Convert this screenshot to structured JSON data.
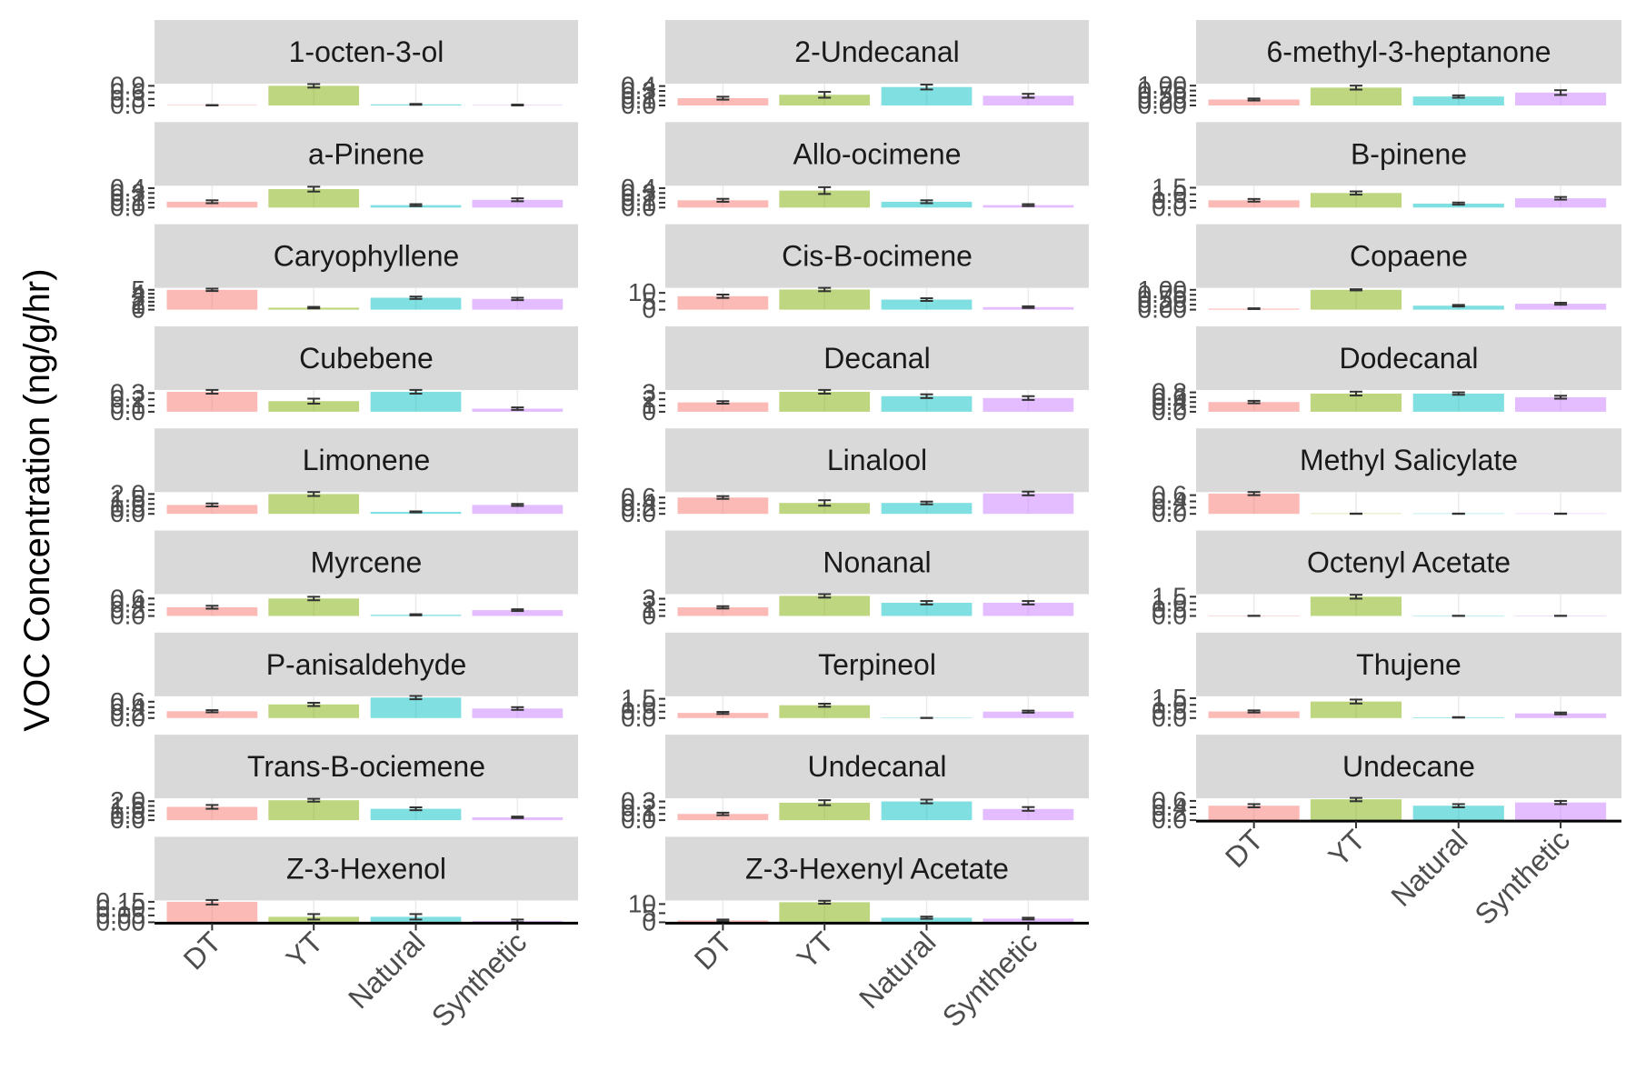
{
  "ylabel": "VOC Concentration (ng/g/hr)",
  "categories": [
    "DT",
    "YT",
    "Natural",
    "Synthetic"
  ],
  "colors": {
    "DT": "#F8766D",
    "YT": "#7CAE00",
    "Natural": "#00BFC4",
    "Synthetic": "#C77CFF",
    "strip_bg": "#D9D9D9",
    "error_bar": "#333333",
    "axis_line": "#000000"
  },
  "chart_data": {
    "type": "bar",
    "layout": "facet_wrap ncol=3 free_y",
    "x": "treatment",
    "ylabel": "VOC Concentration (ng/g/hr)",
    "categories": [
      "DT",
      "YT",
      "Natural",
      "Synthetic"
    ],
    "bar_alpha": 0.5,
    "facets": [
      {
        "title": "1-octen-3-ol",
        "yticks": [
          "0.0",
          "0.3",
          "0.6",
          "0.9"
        ],
        "ymax": 1.0,
        "values": [
          0.0,
          0.9,
          0.05,
          0.02
        ],
        "errors": [
          0.02,
          0.08,
          0.02,
          0.02
        ]
      },
      {
        "title": "2-Undecanal",
        "yticks": [
          "0.0",
          "0.1",
          "0.2",
          "0.3",
          "0.4"
        ],
        "ymax": 0.45,
        "values": [
          0.15,
          0.22,
          0.38,
          0.2
        ],
        "errors": [
          0.03,
          0.06,
          0.05,
          0.04
        ]
      },
      {
        "title": "6-methyl-3-heptanone",
        "yticks": [
          "0.00",
          "0.25",
          "0.50",
          "0.75",
          "1.00"
        ],
        "ymax": 1.1,
        "values": [
          0.3,
          0.9,
          0.45,
          0.65
        ],
        "errors": [
          0.05,
          0.1,
          0.06,
          0.12
        ]
      },
      {
        "title": "a-Pinene",
        "yticks": [
          "0.0",
          "0.1",
          "0.2",
          "0.3",
          "0.4"
        ],
        "ymax": 0.45,
        "values": [
          0.12,
          0.38,
          0.05,
          0.16
        ],
        "errors": [
          0.03,
          0.05,
          0.02,
          0.03
        ]
      },
      {
        "title": "Allo-ocimene",
        "yticks": [
          "0.0",
          "0.1",
          "0.2",
          "0.3",
          "0.4"
        ],
        "ymax": 0.45,
        "values": [
          0.15,
          0.35,
          0.12,
          0.05
        ],
        "errors": [
          0.03,
          0.07,
          0.03,
          0.02
        ]
      },
      {
        "title": "B-pinene",
        "yticks": [
          "0.0",
          "0.5",
          "1.0",
          "1.5"
        ],
        "ymax": 1.65,
        "values": [
          0.55,
          1.1,
          0.3,
          0.7
        ],
        "errors": [
          0.1,
          0.12,
          0.08,
          0.1
        ]
      },
      {
        "title": "Caryophyllene",
        "yticks": [
          "0",
          "1",
          "2",
          "3",
          "4",
          "5"
        ],
        "ymax": 5.5,
        "values": [
          5.0,
          0.5,
          3.0,
          2.7
        ],
        "errors": [
          0.3,
          0.2,
          0.3,
          0.3
        ]
      },
      {
        "title": "Cis-B-ocimene",
        "yticks": [
          "0",
          "5",
          "10"
        ],
        "ymax": 13,
        "values": [
          8.0,
          12.0,
          6.0,
          1.5
        ],
        "errors": [
          1.0,
          1.0,
          0.8,
          0.5
        ]
      },
      {
        "title": "Copaene",
        "yticks": [
          "0.00",
          "0.25",
          "0.50",
          "0.75",
          "1.00"
        ],
        "ymax": 1.1,
        "values": [
          0.05,
          1.0,
          0.2,
          0.3
        ],
        "errors": [
          0.02,
          0.03,
          0.04,
          0.05
        ]
      },
      {
        "title": "Cubebene",
        "yticks": [
          "0.0",
          "0.1",
          "0.2",
          "0.3"
        ],
        "ymax": 0.35,
        "values": [
          0.32,
          0.17,
          0.32,
          0.05
        ],
        "errors": [
          0.03,
          0.04,
          0.03,
          0.02
        ]
      },
      {
        "title": "Decanal",
        "yticks": [
          "0",
          "1",
          "2",
          "3"
        ],
        "ymax": 3.5,
        "values": [
          1.5,
          3.2,
          2.5,
          2.2
        ],
        "errors": [
          0.2,
          0.3,
          0.3,
          0.3
        ]
      },
      {
        "title": "Dodecanal",
        "yticks": [
          "0.0",
          "0.2",
          "0.4",
          "0.6",
          "0.8"
        ],
        "ymax": 0.9,
        "values": [
          0.4,
          0.75,
          0.75,
          0.6
        ],
        "errors": [
          0.05,
          0.08,
          0.05,
          0.06
        ]
      },
      {
        "title": "Limonene",
        "yticks": [
          "0.0",
          "0.5",
          "1.0",
          "1.5",
          "2.0"
        ],
        "ymax": 2.2,
        "values": [
          0.9,
          2.0,
          0.2,
          0.9
        ],
        "errors": [
          0.15,
          0.2,
          0.05,
          0.1
        ]
      },
      {
        "title": "Linalool",
        "yticks": [
          "0.0",
          "0.2",
          "0.4",
          "0.6"
        ],
        "ymax": 0.8,
        "values": [
          0.6,
          0.4,
          0.4,
          0.75
        ],
        "errors": [
          0.05,
          0.1,
          0.05,
          0.07
        ]
      },
      {
        "title": "Methyl Salicylate",
        "yticks": [
          "0.0",
          "0.2",
          "0.4",
          "0.6"
        ],
        "ymax": 0.7,
        "values": [
          0.65,
          0.0,
          0.0,
          0.0
        ],
        "errors": [
          0.05,
          0.01,
          0.01,
          0.01
        ]
      },
      {
        "title": "Myrcene",
        "yticks": [
          "0.0",
          "0.2",
          "0.4",
          "0.6"
        ],
        "ymax": 0.75,
        "values": [
          0.3,
          0.6,
          0.04,
          0.2
        ],
        "errors": [
          0.05,
          0.06,
          0.02,
          0.03
        ]
      },
      {
        "title": "Nonanal",
        "yticks": [
          "0",
          "1",
          "2",
          "3"
        ],
        "ymax": 3.8,
        "values": [
          1.5,
          3.5,
          2.3,
          2.3
        ],
        "errors": [
          0.2,
          0.3,
          0.3,
          0.3
        ]
      },
      {
        "title": "Octenyl Acetate",
        "yticks": [
          "0.0",
          "0.5",
          "1.0",
          "1.5"
        ],
        "ymax": 1.7,
        "values": [
          0.0,
          1.5,
          0.0,
          0.0
        ],
        "errors": [
          0.02,
          0.15,
          0.02,
          0.02
        ]
      },
      {
        "title": "P-anisaldehyde",
        "yticks": [
          "0.0",
          "0.2",
          "0.4",
          "0.6"
        ],
        "ymax": 0.8,
        "values": [
          0.25,
          0.5,
          0.75,
          0.35
        ],
        "errors": [
          0.04,
          0.06,
          0.06,
          0.05
        ]
      },
      {
        "title": "Terpineol",
        "yticks": [
          "0.0",
          "0.5",
          "1.0",
          "1.5"
        ],
        "ymax": 1.7,
        "values": [
          0.4,
          1.0,
          0.0,
          0.5
        ],
        "errors": [
          0.08,
          0.12,
          0.02,
          0.08
        ]
      },
      {
        "title": "Thujene",
        "yticks": [
          "0.0",
          "0.5",
          "1.0",
          "1.5"
        ],
        "ymax": 1.65,
        "values": [
          0.5,
          1.25,
          0.05,
          0.35
        ],
        "errors": [
          0.08,
          0.15,
          0.02,
          0.07
        ]
      },
      {
        "title": "Trans-B-ociemene",
        "yticks": [
          "0.0",
          "0.5",
          "1.0",
          "1.5",
          "2.0"
        ],
        "ymax": 2.3,
        "values": [
          1.4,
          2.1,
          1.2,
          0.3
        ],
        "errors": [
          0.2,
          0.15,
          0.15,
          0.08
        ]
      },
      {
        "title": "Undecanal",
        "yticks": [
          "0.0",
          "0.1",
          "0.2",
          "0.3"
        ],
        "ymax": 0.35,
        "values": [
          0.1,
          0.28,
          0.3,
          0.18
        ],
        "errors": [
          0.02,
          0.04,
          0.03,
          0.03
        ]
      },
      {
        "title": "Undecane",
        "yticks": [
          "0.0",
          "0.2",
          "0.4",
          "0.6"
        ],
        "ymax": 0.68,
        "values": [
          0.45,
          0.65,
          0.45,
          0.55
        ],
        "errors": [
          0.05,
          0.06,
          0.05,
          0.05
        ]
      },
      {
        "title": "Z-3-Hexenol",
        "yticks": [
          "0.00",
          "0.05",
          "0.10",
          "0.15"
        ],
        "ymax": 0.16,
        "values": [
          0.15,
          0.04,
          0.04,
          0.01
        ],
        "errors": [
          0.02,
          0.02,
          0.02,
          0.01
        ]
      },
      {
        "title": "Z-3-Hexenyl Acetate",
        "yticks": [
          "0",
          "5",
          "10"
        ],
        "ymax": 12,
        "values": [
          1.0,
          11.0,
          2.5,
          2.0
        ],
        "errors": [
          0.5,
          0.8,
          0.6,
          0.5
        ]
      }
    ]
  }
}
